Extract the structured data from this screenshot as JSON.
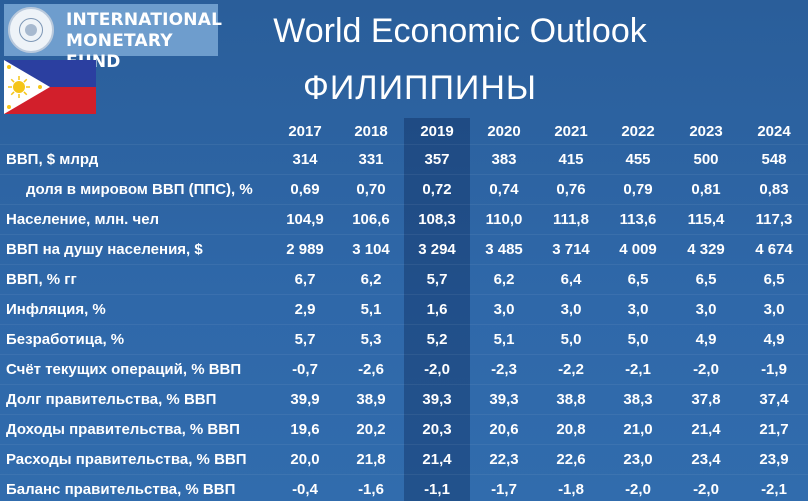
{
  "header": {
    "org_name": "INTERNATIONAL\nMONETARY FUND",
    "report_title": "World Economic Outlook",
    "country": "ФИЛИППИНЫ"
  },
  "colors": {
    "flag_blue": "#2b3fa0",
    "flag_red": "#d21f2b",
    "flag_white": "#ffffff",
    "flag_sun": "#f5c518",
    "highlight_column": "2019"
  },
  "chart_data": {
    "type": "table",
    "columns": [
      "2017",
      "2018",
      "2019",
      "2020",
      "2021",
      "2022",
      "2023",
      "2024"
    ],
    "rows": [
      {
        "label": "ВВП, $ млрд",
        "indent": false,
        "values": [
          "314",
          "331",
          "357",
          "383",
          "415",
          "455",
          "500",
          "548"
        ]
      },
      {
        "label": "доля в мировом ВВП (ППС), %",
        "indent": true,
        "values": [
          "0,69",
          "0,70",
          "0,72",
          "0,74",
          "0,76",
          "0,79",
          "0,81",
          "0,83"
        ]
      },
      {
        "label": "Население, млн. чел",
        "indent": false,
        "values": [
          "104,9",
          "106,6",
          "108,3",
          "110,0",
          "111,8",
          "113,6",
          "115,4",
          "117,3"
        ]
      },
      {
        "label": "ВВП на душу населения, $",
        "indent": false,
        "values": [
          "2 989",
          "3 104",
          "3 294",
          "3 485",
          "3 714",
          "4 009",
          "4 329",
          "4 674"
        ]
      },
      {
        "label": "ВВП, % гг",
        "indent": false,
        "values": [
          "6,7",
          "6,2",
          "5,7",
          "6,2",
          "6,4",
          "6,5",
          "6,5",
          "6,5"
        ]
      },
      {
        "label": "Инфляция, %",
        "indent": false,
        "values": [
          "2,9",
          "5,1",
          "1,6",
          "3,0",
          "3,0",
          "3,0",
          "3,0",
          "3,0"
        ]
      },
      {
        "label": "Безработица, %",
        "indent": false,
        "values": [
          "5,7",
          "5,3",
          "5,2",
          "5,1",
          "5,0",
          "5,0",
          "4,9",
          "4,9"
        ]
      },
      {
        "label": "Счёт текущих операций, % ВВП",
        "indent": false,
        "values": [
          "-0,7",
          "-2,6",
          "-2,0",
          "-2,3",
          "-2,2",
          "-2,1",
          "-2,0",
          "-1,9"
        ]
      },
      {
        "label": "Долг правительства, % ВВП",
        "indent": false,
        "values": [
          "39,9",
          "38,9",
          "39,3",
          "39,3",
          "38,8",
          "38,3",
          "37,8",
          "37,4"
        ]
      },
      {
        "label": "Доходы правительства, % ВВП",
        "indent": false,
        "values": [
          "19,6",
          "20,2",
          "20,3",
          "20,6",
          "20,8",
          "21,0",
          "21,4",
          "21,7"
        ]
      },
      {
        "label": "Расходы правительства, % ВВП",
        "indent": false,
        "values": [
          "20,0",
          "21,8",
          "21,4",
          "22,3",
          "22,6",
          "23,0",
          "23,4",
          "23,9"
        ]
      },
      {
        "label": "Баланс правительства, % ВВП",
        "indent": false,
        "values": [
          "-0,4",
          "-1,6",
          "-1,1",
          "-1,7",
          "-1,8",
          "-2,0",
          "-2,0",
          "-2,1"
        ]
      }
    ]
  }
}
